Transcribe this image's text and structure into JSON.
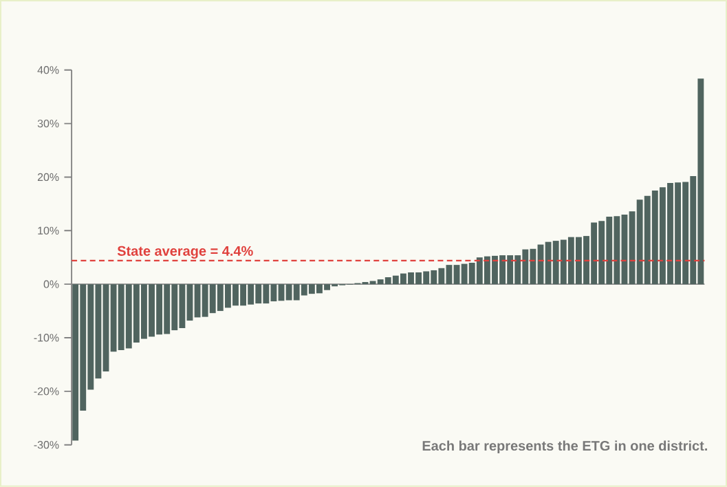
{
  "chart_data": {
    "type": "bar",
    "categories": [
      null,
      null,
      null,
      null,
      null,
      null,
      null,
      null,
      null,
      null,
      null,
      null,
      null,
      null,
      null,
      null,
      null,
      null,
      null,
      null,
      null,
      null,
      null,
      null,
      null,
      null,
      null,
      null,
      null,
      null,
      null,
      null,
      null,
      null,
      null,
      null,
      null,
      null,
      null,
      null,
      null,
      null,
      null,
      null,
      null,
      null,
      null,
      null,
      null,
      null,
      null,
      null,
      null,
      null,
      null,
      null,
      null,
      null,
      null,
      null,
      null,
      null,
      null,
      null,
      null,
      null,
      null,
      null,
      null,
      null,
      null,
      null,
      null,
      null,
      null,
      null,
      null,
      null,
      null,
      null,
      null,
      null,
      null
    ],
    "values": [
      -29.2,
      -23.6,
      -19.7,
      -17.6,
      -16.3,
      -12.6,
      -12.3,
      -12.0,
      -10.9,
      -10.2,
      -9.8,
      -9.4,
      -9.3,
      -8.6,
      -8.2,
      -6.8,
      -6.2,
      -6.1,
      -5.4,
      -5.0,
      -4.4,
      -4.0,
      -4.0,
      -3.8,
      -3.6,
      -3.6,
      -3.2,
      -3.1,
      -3.0,
      -3.0,
      -2.1,
      -1.8,
      -1.7,
      -1.1,
      -0.4,
      -0.2,
      -0.1,
      0.2,
      0.4,
      0.6,
      0.9,
      1.3,
      1.6,
      2.0,
      2.2,
      2.2,
      2.4,
      2.6,
      3.0,
      3.6,
      3.6,
      3.8,
      4.0,
      5.0,
      5.2,
      5.3,
      5.4,
      5.4,
      5.4,
      6.5,
      6.6,
      7.4,
      7.9,
      8.1,
      8.3,
      8.8,
      8.8,
      9.0,
      11.5,
      11.8,
      12.6,
      12.7,
      13.0,
      13.6,
      15.8,
      16.5,
      17.5,
      18.1,
      18.9,
      19.0,
      19.1,
      20.2,
      38.4
    ],
    "color": "#50645f",
    "ylim": [
      -30,
      40
    ],
    "yticks": [
      {
        "value": -30,
        "label": "-30%"
      },
      {
        "value": -20,
        "label": "-20%"
      },
      {
        "value": -10,
        "label": "-10%"
      },
      {
        "value": 0,
        "label": "0%"
      },
      {
        "value": 10,
        "label": "10%"
      },
      {
        "value": 20,
        "label": "20%"
      },
      {
        "value": 30,
        "label": "30%"
      },
      {
        "value": 40,
        "label": "40%"
      }
    ],
    "tick_labels": "y",
    "ref_lines": [
      {
        "axis": "y",
        "value": 4.4,
        "label": "State average = 4.4%",
        "color": "#e0413d",
        "line_style": "dashed"
      }
    ],
    "annotations": [
      "Each bar represents the ETG in one district."
    ]
  }
}
